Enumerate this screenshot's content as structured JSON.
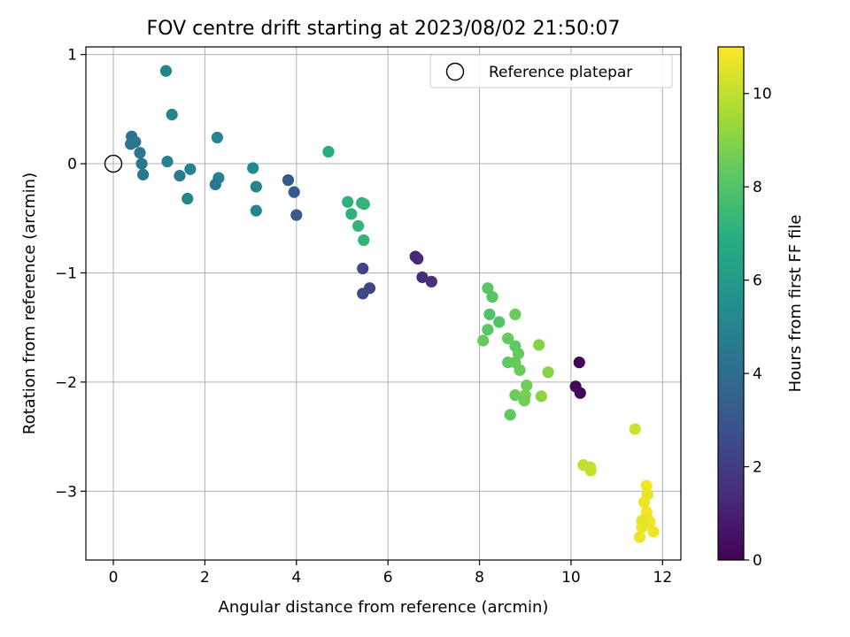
{
  "chart_data": {
    "type": "scatter",
    "title": "FOV centre drift starting at 2023/08/02 21:50:07",
    "xlabel": "Angular distance from reference (arcmin)",
    "ylabel": "Rotation from reference (arcmin)",
    "xlim": [
      -0.6,
      12.4
    ],
    "ylim": [
      -3.63,
      1.07
    ],
    "xticks": [
      0,
      2,
      4,
      6,
      8,
      10,
      12
    ],
    "xtick_labels": [
      "0",
      "2",
      "4",
      "6",
      "8",
      "10",
      "12"
    ],
    "yticks": [
      1,
      0,
      -1,
      -2,
      -3
    ],
    "ytick_labels": [
      "1",
      "0",
      "−1",
      "−2",
      "−3"
    ],
    "grid": true,
    "legend": {
      "location": "upper right",
      "entries": [
        {
          "label": "Reference platepar",
          "marker": "open-circle",
          "x": 0,
          "y": 0
        }
      ]
    },
    "colorbar": {
      "label": "Hours from first FF file",
      "colormap": "viridis",
      "range": [
        0,
        11
      ],
      "ticks": [
        0,
        2,
        4,
        6,
        8,
        10
      ],
      "tick_labels": [
        "0",
        "2",
        "4",
        "6",
        "8",
        "10"
      ]
    },
    "series": [
      {
        "x": [
          10.18,
          10.1,
          10.2,
          6.6,
          6.65,
          6.75,
          6.95,
          5.45,
          5.6,
          5.45,
          3.82,
          3.95,
          4.0,
          0.4,
          0.38,
          0.48,
          0.58,
          0.62,
          0.65,
          1.15,
          1.28,
          1.18,
          1.45,
          1.68,
          1.62,
          2.27,
          2.3,
          2.23,
          3.05,
          3.12,
          3.12,
          4.7,
          5.12,
          5.2,
          5.35,
          5.43,
          5.48,
          5.47,
          8.18,
          8.28,
          8.22,
          8.43,
          8.18,
          8.08,
          8.78,
          8.62,
          8.78,
          8.85,
          8.62,
          8.78,
          8.88,
          9.03,
          8.78,
          9.0,
          8.98,
          8.67,
          9.3,
          9.5,
          9.35,
          11.4,
          10.27,
          10.42,
          10.43,
          11.65,
          11.67,
          11.6,
          11.65,
          11.67,
          11.55,
          11.72,
          11.55,
          11.62,
          11.8,
          11.5
        ],
        "y": [
          -1.82,
          -2.04,
          -2.1,
          -0.85,
          -0.87,
          -1.04,
          -1.08,
          -0.96,
          -1.14,
          -1.19,
          -0.15,
          -0.26,
          -0.47,
          0.25,
          0.18,
          0.2,
          0.1,
          0.0,
          -0.1,
          0.85,
          0.45,
          0.02,
          -0.11,
          -0.05,
          -0.32,
          0.24,
          -0.13,
          -0.19,
          -0.04,
          -0.21,
          -0.43,
          0.11,
          -0.35,
          -0.46,
          -0.57,
          -0.36,
          -0.37,
          -0.7,
          -1.14,
          -1.22,
          -1.38,
          -1.45,
          -1.52,
          -1.62,
          -1.38,
          -1.6,
          -1.67,
          -1.74,
          -1.82,
          -1.82,
          -1.89,
          -2.03,
          -2.12,
          -2.12,
          -2.17,
          -2.3,
          -1.66,
          -1.91,
          -2.13,
          -2.43,
          -2.76,
          -2.78,
          -2.81,
          -2.95,
          -3.03,
          -3.1,
          -3.19,
          -3.25,
          -3.27,
          -3.28,
          -3.33,
          -3.3,
          -3.37,
          -3.42
        ],
        "hours": [
          0.1,
          0.2,
          0.2,
          1.2,
          1.3,
          1.4,
          1.5,
          2.3,
          2.3,
          2.4,
          3.0,
          3.1,
          3.1,
          4.2,
          4.3,
          4.3,
          4.5,
          4.5,
          4.4,
          4.9,
          5.0,
          4.9,
          4.6,
          4.9,
          5.0,
          5.0,
          4.8,
          4.5,
          5.2,
          5.0,
          5.0,
          6.8,
          7.1,
          7.1,
          7.2,
          7.0,
          7.3,
          7.2,
          8.2,
          8.1,
          8.0,
          8.0,
          8.2,
          8.4,
          8.5,
          8.4,
          8.3,
          8.4,
          8.3,
          8.4,
          8.5,
          8.6,
          8.5,
          8.7,
          8.6,
          8.3,
          9.0,
          9.0,
          9.1,
          10.2,
          10.0,
          10.0,
          10.1,
          10.8,
          10.6,
          10.7,
          10.8,
          10.7,
          10.6,
          10.8,
          10.7,
          10.6,
          10.8,
          10.7
        ]
      }
    ]
  }
}
